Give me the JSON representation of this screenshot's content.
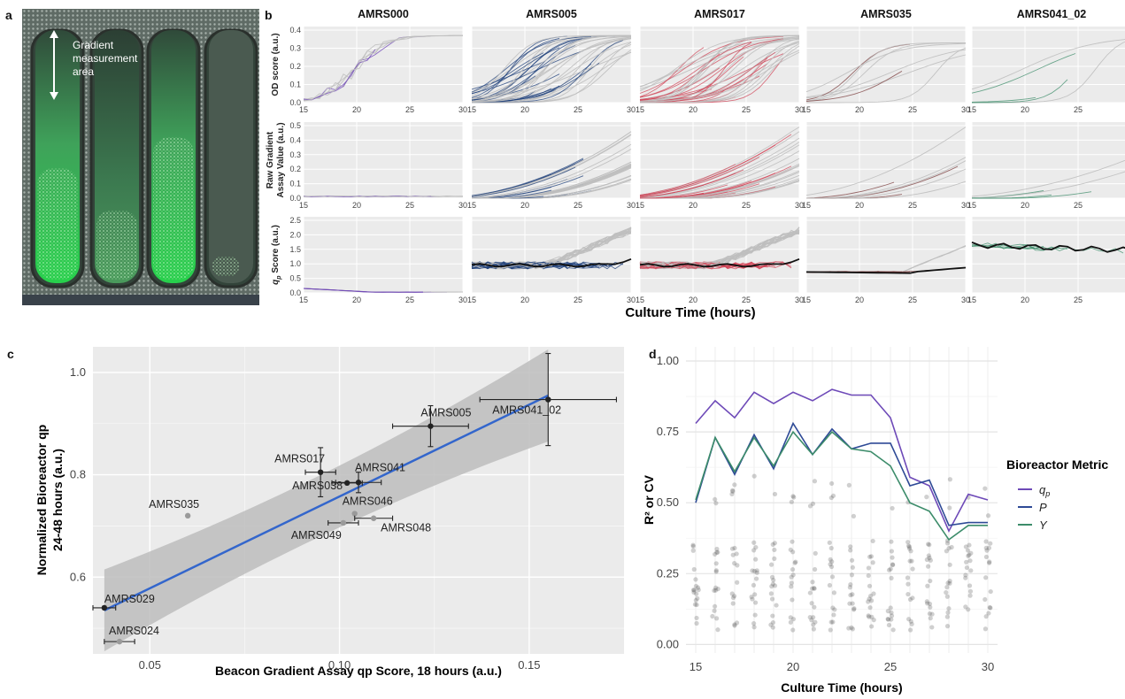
{
  "panel_labels": {
    "a": "a",
    "b": "b",
    "c": "c",
    "d": "d"
  },
  "panel_a": {
    "annotation": [
      "Gradient",
      "measurement",
      "area"
    ]
  },
  "panel_b": {
    "strains": [
      "AMRS000",
      "AMRS005",
      "AMRS017",
      "AMRS035",
      "AMRS041_02"
    ],
    "colors": [
      "#6a3fb5",
      "#1e3f7a",
      "#d04457",
      "#7a3b3b",
      "#3c8c6a"
    ],
    "row_labels": [
      [
        "OD score (a.u.)"
      ],
      [
        "Raw Gradient",
        "Assay Value (a.u.)"
      ],
      [
        "qp Score (a.u.)"
      ]
    ],
    "xlabel": "Culture Time (hours)",
    "x_ticks": [
      "15",
      "20",
      "25",
      "30"
    ],
    "y_ticks": [
      [
        "0.0",
        "0.1",
        "0.2",
        "0.3",
        "0.4"
      ],
      [
        "0.0",
        "0.1",
        "0.2",
        "0.3",
        "0.4",
        "0.5"
      ],
      [
        "0.0",
        "0.5",
        "1.0",
        "1.5",
        "2.0",
        "2.5"
      ]
    ]
  },
  "chart_data": [
    {
      "type": "scatter",
      "title": "",
      "xlabel": "Beacon Gradient Assay qp Score, 18 hours (a.u.)",
      "ylabel": [
        "Normalized Bioreactor qp",
        "24-48 hours (a.u.)"
      ],
      "xlim": [
        0.035,
        0.175
      ],
      "ylim": [
        0.45,
        1.05
      ],
      "x_ticks": [
        "0.05",
        "0.10",
        "0.15"
      ],
      "y_ticks": [
        "0.6",
        "0.8",
        "1.0"
      ],
      "points": [
        {
          "label": "AMRS029",
          "x": 0.038,
          "y": 0.54,
          "xerr": 0.003,
          "yerr": 0,
          "dark": true
        },
        {
          "label": "AMRS024",
          "x": 0.042,
          "y": 0.474,
          "xerr": 0.004,
          "yerr": 0,
          "dark": false
        },
        {
          "label": "AMRS035",
          "x": 0.06,
          "y": 0.72,
          "xerr": 0,
          "yerr": 0,
          "dark": false
        },
        {
          "label": "AMRS017",
          "x": 0.095,
          "y": 0.805,
          "xerr": 0.004,
          "yerr": 0.048,
          "dark": true
        },
        {
          "label": "AMRS038",
          "x": 0.102,
          "y": 0.784,
          "xerr": 0.004,
          "yerr": 0,
          "dark": true
        },
        {
          "label": "AMRS041",
          "x": 0.105,
          "y": 0.785,
          "xerr": 0.006,
          "yerr": 0.02,
          "dark": true
        },
        {
          "label": "AMRS046",
          "x": 0.104,
          "y": 0.724,
          "xerr": 0,
          "yerr": 0,
          "dark": false
        },
        {
          "label": "AMRS049",
          "x": 0.101,
          "y": 0.706,
          "xerr": 0.004,
          "yerr": 0,
          "dark": false
        },
        {
          "label": "AMRS048",
          "x": 0.109,
          "y": 0.715,
          "xerr": 0.005,
          "yerr": 0,
          "dark": false
        },
        {
          "label": "AMRS005",
          "x": 0.124,
          "y": 0.895,
          "xerr": 0.01,
          "yerr": 0.04,
          "dark": true
        },
        {
          "label": "AMRS041_02",
          "x": 0.155,
          "y": 0.947,
          "xerr": 0.018,
          "yerr": 0.09,
          "dark": true
        }
      ],
      "fit_line": {
        "x": [
          0.038,
          0.155
        ],
        "y": [
          0.535,
          0.955
        ],
        "color": "#3366cc"
      },
      "ci_band": {
        "x": [
          0.038,
          0.155
        ],
        "lower": [
          0.455,
          0.865
        ],
        "upper": [
          0.615,
          1.045
        ]
      }
    },
    {
      "type": "line",
      "title": "",
      "xlabel": "Culture Time (hours)",
      "ylabel": "R² or CV",
      "xlim": [
        14.5,
        30.5
      ],
      "ylim": [
        -0.03,
        1.05
      ],
      "x_ticks": [
        "15",
        "20",
        "25",
        "30"
      ],
      "y_ticks": [
        "0.00",
        "0.25",
        "0.50",
        "0.75",
        "1.00"
      ],
      "x": [
        15,
        16,
        17,
        18,
        19,
        20,
        21,
        22,
        23,
        24,
        25,
        26,
        27,
        28,
        29,
        30
      ],
      "legend_title": "Bioreactor Metric",
      "series": [
        {
          "name": "qp",
          "color": "#6e4ab8",
          "values": [
            0.78,
            0.86,
            0.8,
            0.89,
            0.85,
            0.89,
            0.86,
            0.9,
            0.88,
            0.88,
            0.8,
            0.59,
            0.56,
            0.4,
            0.53,
            0.51
          ]
        },
        {
          "name": "P",
          "color": "#2e4a96",
          "values": [
            0.5,
            0.73,
            0.6,
            0.74,
            0.62,
            0.78,
            0.67,
            0.76,
            0.69,
            0.71,
            0.71,
            0.56,
            0.58,
            0.42,
            0.43,
            0.43
          ]
        },
        {
          "name": "Y",
          "color": "#3c8c6a",
          "values": [
            0.51,
            0.73,
            0.61,
            0.73,
            0.63,
            0.75,
            0.67,
            0.75,
            0.69,
            0.68,
            0.63,
            0.5,
            0.47,
            0.37,
            0.42,
            0.42
          ]
        }
      ]
    }
  ]
}
